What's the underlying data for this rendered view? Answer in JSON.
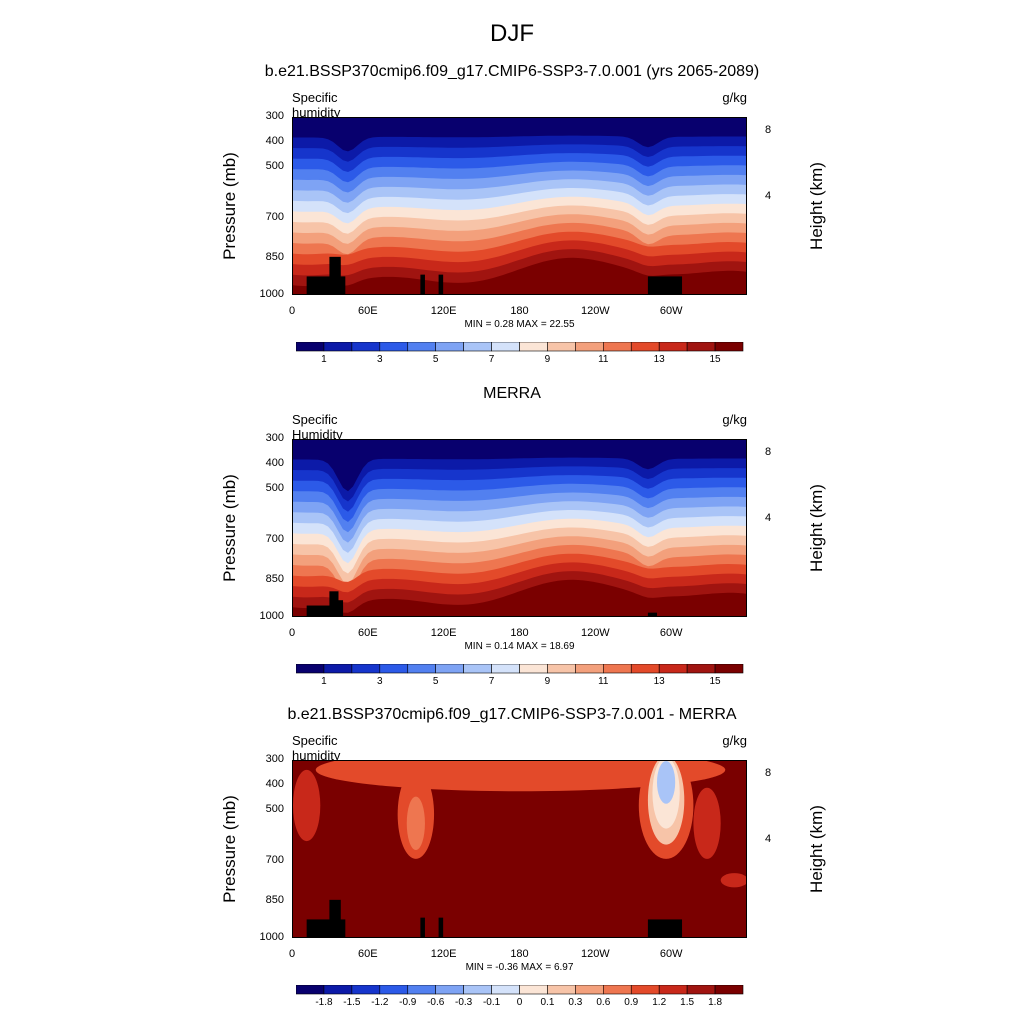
{
  "title": "DJF",
  "panels": [
    {
      "title": "b.e21.BSSP370cmip6.f09_g17.CMIP6-SSP3-7.0.001 (yrs 2065-2089)",
      "variable": "Specific humidity",
      "units": "g/kg",
      "min_label": "MIN =   0.28  MAX =  22.55",
      "colorbar_labels": [
        "1",
        "3",
        "5",
        "7",
        "9",
        "11",
        "13",
        "15"
      ]
    },
    {
      "title": "MERRA",
      "variable": "Specific Humidity",
      "units": "g/kg",
      "min_label": "MIN =   0.14  MAX =  18.69",
      "colorbar_labels": [
        "1",
        "3",
        "5",
        "7",
        "9",
        "11",
        "13",
        "15"
      ]
    },
    {
      "title": "b.e21.BSSP370cmip6.f09_g17.CMIP6-SSP3-7.0.001 - MERRA",
      "variable": "Specific humidity",
      "units": "g/kg",
      "min_label": "MIN =  -0.36  MAX =   6.97",
      "colorbar_labels": [
        "-1.8",
        "-1.5",
        "-1.2",
        "-0.9",
        "-0.6",
        "-0.3",
        "-0.1",
        "0",
        "0.1",
        "0.3",
        "0.6",
        "0.9",
        "1.2",
        "1.5",
        "1.8"
      ]
    }
  ],
  "axes": {
    "ylabel": "Pressure (mb)",
    "y2label": "Height (km)",
    "pressure_ticks": [
      "300",
      "400",
      "500",
      "700",
      "850",
      "1000"
    ],
    "height_ticks": [
      "8",
      "4"
    ],
    "lon_ticks": [
      "0",
      "60E",
      "120E",
      "180",
      "120W",
      "60W"
    ]
  },
  "chart_data": [
    {
      "type": "heatmap",
      "title": "b.e21.BSSP370cmip6.f09_g17.CMIP6-SSP3-7.0.001 (yrs 2065-2089)",
      "x": "longitude 0-360",
      "y": "pressure 1000-300 mb",
      "levels": [
        1,
        2,
        3,
        4,
        5,
        6,
        7,
        8,
        9,
        10,
        11,
        12,
        13,
        14,
        15
      ],
      "min": 0.28,
      "max": 22.55
    },
    {
      "type": "heatmap",
      "title": "MERRA",
      "levels": [
        1,
        2,
        3,
        4,
        5,
        6,
        7,
        8,
        9,
        10,
        11,
        12,
        13,
        14,
        15
      ],
      "min": 0.14,
      "max": 18.69
    },
    {
      "type": "heatmap",
      "title": "b.e21.BSSP370cmip6.f09_g17.CMIP6-SSP3-7.0.001 - MERRA",
      "levels": [
        -1.8,
        -1.5,
        -1.2,
        -0.9,
        -0.6,
        -0.3,
        -0.1,
        0,
        0.1,
        0.3,
        0.6,
        0.9,
        1.2,
        1.5,
        1.8
      ],
      "min": -0.36,
      "max": 6.97
    }
  ],
  "colors": {
    "palette": [
      "#08006e",
      "#0c1aa8",
      "#1635cc",
      "#2c5ae8",
      "#5280f0",
      "#7ea3f4",
      "#a9c4f7",
      "#d4e2fa",
      "#fbe5d6",
      "#f7c4a8",
      "#f3a07c",
      "#ee7650",
      "#e34a2a",
      "#c8281a",
      "#a01410",
      "#7a0000"
    ]
  }
}
